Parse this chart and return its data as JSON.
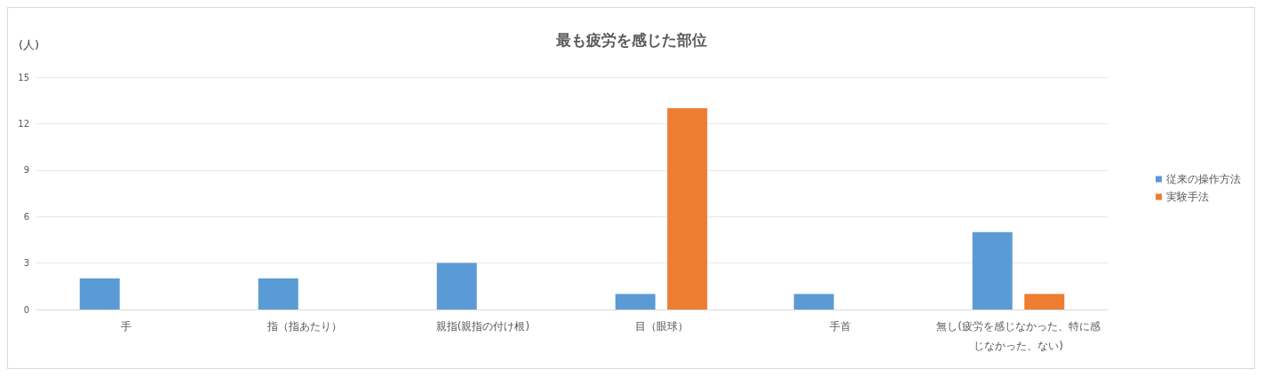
{
  "chart_data": {
    "type": "bar",
    "title": "最も疲労を感じた部位",
    "ylabel": "(人)",
    "categories": [
      "手",
      "指（指あたり）",
      "親指(親指の付け根)",
      "目（眼球）",
      "手首",
      "無し(疲労を感じなかった、特に感じなかった、ない)"
    ],
    "series": [
      {
        "name": "従来の操作方法",
        "color": "#5b9bd5",
        "values": [
          2,
          2,
          3,
          1,
          1,
          5
        ]
      },
      {
        "name": "実験手法",
        "color": "#ed7d31",
        "values": [
          0,
          0,
          0,
          13,
          0,
          1
        ]
      }
    ],
    "ylim": [
      0,
      15
    ],
    "yticks": [
      0,
      3,
      6,
      9,
      12,
      15
    ],
    "grid": "y",
    "legend": "right"
  }
}
